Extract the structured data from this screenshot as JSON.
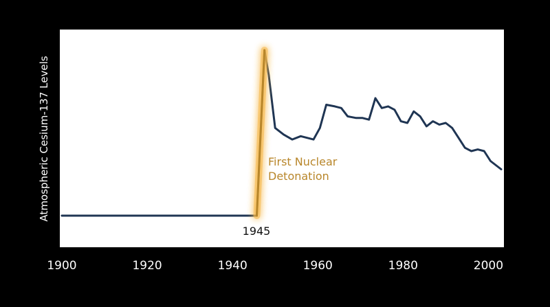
{
  "chart_data": {
    "type": "line",
    "title": "",
    "xlabel": "",
    "ylabel": "Atmospheric Cesium-137 Levels",
    "xlim": [
      1900,
      2003
    ],
    "x_ticks": [
      "1900",
      "1920",
      "1940",
      "1960",
      "1980",
      "2000"
    ],
    "grid": false,
    "legend": "none",
    "series": [
      {
        "color": "#1f3553",
        "x": [
          1900,
          1945.7,
          1947.5,
          1948.5,
          1950,
          1952,
          1954,
          1956,
          1957.5,
          1959,
          1960.5,
          1962,
          1964,
          1965.5,
          1967,
          1969,
          1970.5,
          1972,
          1973.5,
          1975,
          1976.5,
          1978,
          1979.5,
          1981,
          1982.5,
          1984,
          1985.5,
          1987,
          1988.5,
          1990,
          1991.5,
          1993,
          1994.5,
          1996,
          1997.5,
          1999,
          2000.5,
          2003
        ],
        "y": [
          0,
          0,
          100,
          85,
          53,
          49,
          46,
          48,
          47,
          46,
          53,
          67,
          66,
          65,
          60,
          59,
          59,
          58,
          71,
          65,
          66,
          64,
          57,
          56,
          63,
          60,
          54,
          57,
          55,
          56,
          53,
          47,
          41,
          39,
          40,
          39,
          33,
          28
        ]
      }
    ],
    "highlight": {
      "color": "#b8862a",
      "x": [
        1945.7,
        1947.5
      ],
      "y": [
        0,
        100
      ]
    },
    "annotations": {
      "event_line1": "First Nuclear",
      "event_line2": "Detonation",
      "marker_year": "1945"
    }
  }
}
